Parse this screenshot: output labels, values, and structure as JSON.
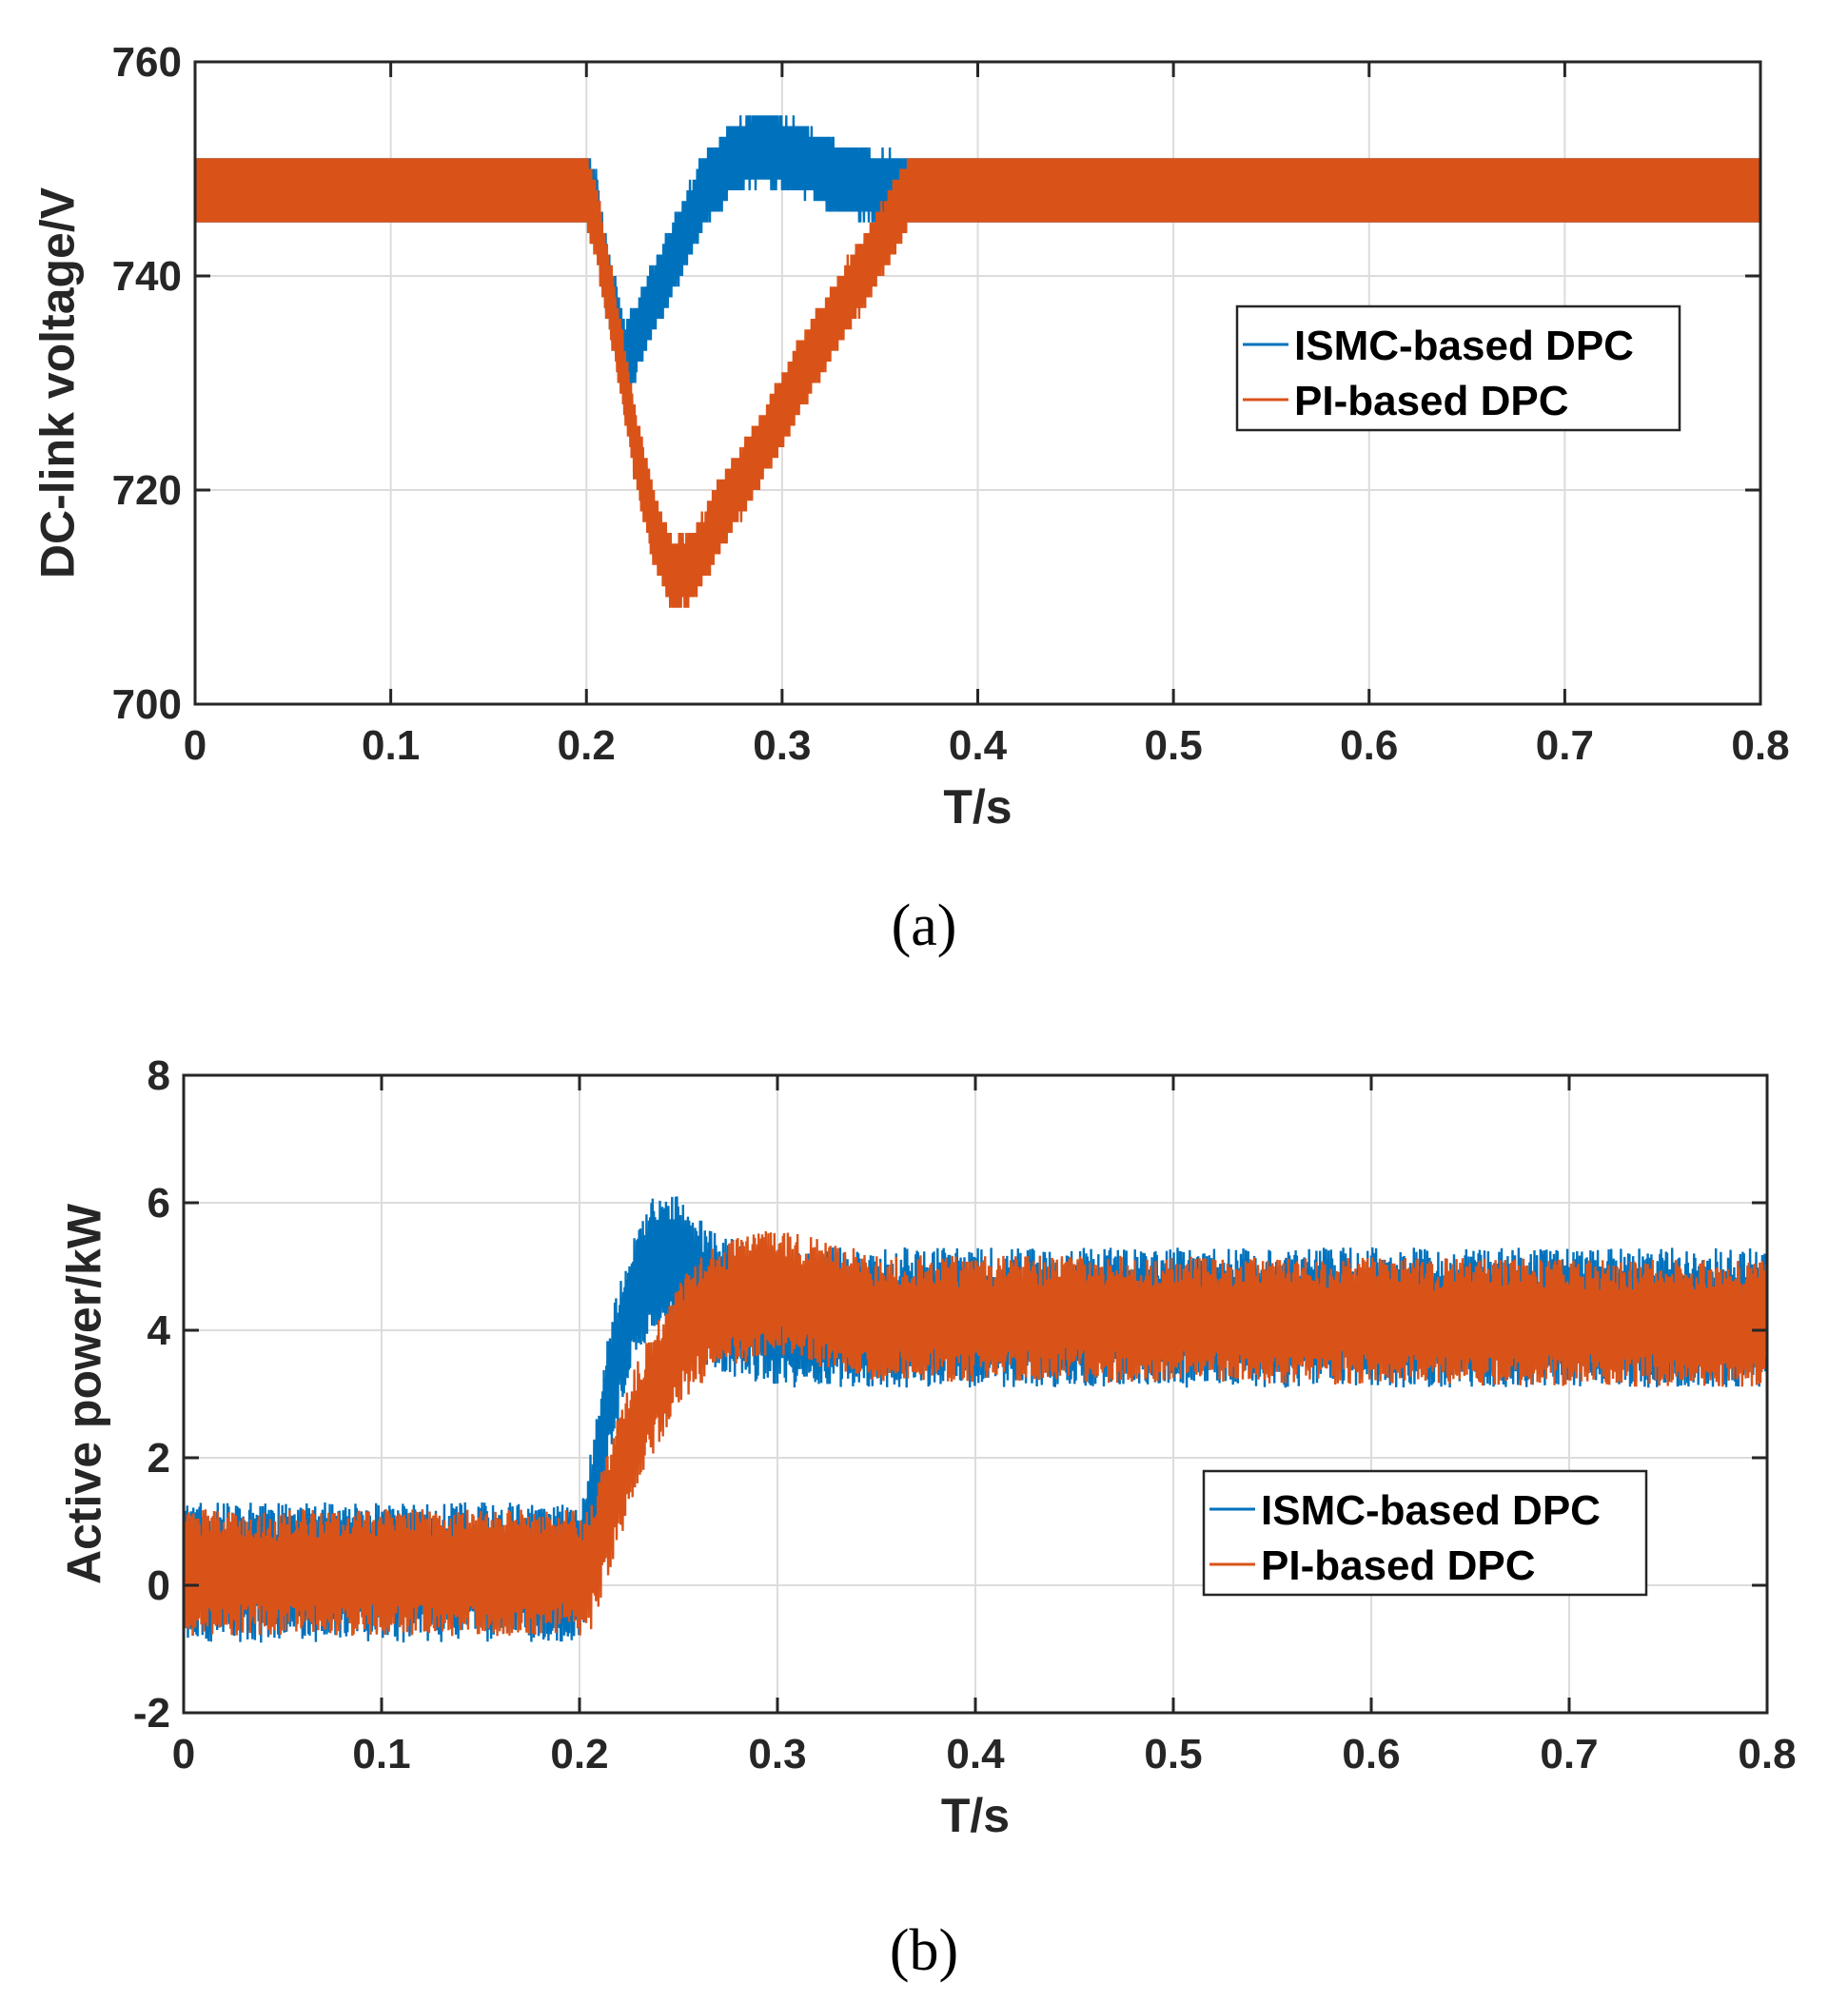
{
  "colors": {
    "ismc": "#0072BD",
    "pi": "#D95319",
    "axis": "#262626",
    "grid": "#dcdcdc"
  },
  "chart_data": [
    {
      "type": "line",
      "panel_label": "(a)",
      "xlabel": "T/s",
      "ylabel": "DC-link voltage/V",
      "xlim": [
        0,
        0.8
      ],
      "ylim": [
        700,
        760
      ],
      "xticks": [
        0,
        0.1,
        0.2,
        0.3,
        0.4,
        0.5,
        0.6,
        0.7,
        0.8
      ],
      "xtick_labels": [
        "0",
        "0.1",
        "0.2",
        "0.3",
        "0.4",
        "0.5",
        "0.6",
        "0.7",
        "0.8"
      ],
      "yticks": [
        700,
        720,
        740,
        760
      ],
      "ytick_labels": [
        "700",
        "720",
        "740",
        "760"
      ],
      "grid": true,
      "legend": [
        "ISMC-based DPC",
        "PI-based DPC"
      ],
      "legend_position": "right",
      "series": [
        {
          "name": "ISMC-based DPC",
          "color": "#0072BD",
          "ripple": 7,
          "x": [
            0,
            0.2,
            0.205,
            0.21,
            0.22,
            0.235,
            0.25,
            0.26,
            0.275,
            0.29,
            0.31,
            0.33,
            0.36,
            0.8
          ],
          "y": [
            748,
            748,
            746,
            740,
            732,
            738,
            744,
            748,
            751,
            752,
            751,
            749,
            748,
            748
          ]
        },
        {
          "name": "PI-based DPC",
          "color": "#D95319",
          "ripple": 7,
          "x": [
            0,
            0.2,
            0.205,
            0.215,
            0.225,
            0.235,
            0.245,
            0.255,
            0.27,
            0.29,
            0.31,
            0.33,
            0.35,
            0.365,
            0.8
          ],
          "y": [
            748,
            748,
            745,
            735,
            724,
            716,
            712,
            713,
            718,
            724,
            731,
            737,
            743,
            748,
            748
          ]
        }
      ]
    },
    {
      "type": "line",
      "panel_label": "(b)",
      "xlabel": "T/s",
      "ylabel": "Active power/kW",
      "xlim": [
        0,
        0.8
      ],
      "ylim": [
        -2,
        8
      ],
      "xticks": [
        0,
        0.1,
        0.2,
        0.3,
        0.4,
        0.5,
        0.6,
        0.7,
        0.8
      ],
      "xtick_labels": [
        "0",
        "0.1",
        "0.2",
        "0.3",
        "0.4",
        "0.5",
        "0.6",
        "0.7",
        "0.8"
      ],
      "yticks": [
        -2,
        0,
        2,
        4,
        6,
        8
      ],
      "ytick_labels": [
        "-2",
        "0",
        "2",
        "4",
        "6",
        "8"
      ],
      "grid": true,
      "legend": [
        "ISMC-based DPC",
        "PI-based DPC"
      ],
      "legend_position": "right",
      "series": [
        {
          "name": "ISMC-based DPC",
          "color": "#0072BD",
          "ripple": 2.2,
          "x": [
            0,
            0.2,
            0.205,
            0.215,
            0.225,
            0.235,
            0.245,
            0.255,
            0.27,
            0.3,
            0.8
          ],
          "y": [
            0.2,
            0.2,
            0.9,
            3.0,
            4.3,
            5.0,
            5.2,
            4.8,
            4.4,
            4.2,
            4.2
          ]
        },
        {
          "name": "PI-based DPC",
          "color": "#D95319",
          "ripple": 2.0,
          "x": [
            0,
            0.205,
            0.215,
            0.23,
            0.25,
            0.27,
            0.3,
            0.35,
            0.8
          ],
          "y": [
            0.2,
            0.2,
            1.2,
            2.6,
            3.8,
            4.4,
            4.6,
            4.2,
            4.1
          ]
        }
      ]
    }
  ]
}
